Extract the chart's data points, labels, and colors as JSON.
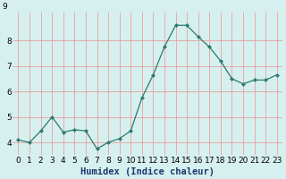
{
  "x": [
    0,
    1,
    2,
    3,
    4,
    5,
    6,
    7,
    8,
    9,
    10,
    11,
    12,
    13,
    14,
    15,
    16,
    17,
    18,
    19,
    20,
    21,
    22,
    23
  ],
  "y": [
    4.1,
    4.0,
    4.45,
    5.0,
    4.4,
    4.5,
    4.45,
    3.75,
    4.0,
    4.15,
    4.45,
    5.75,
    6.65,
    7.75,
    8.6,
    8.6,
    8.15,
    7.75,
    7.2,
    6.5,
    6.3,
    6.45,
    6.45,
    6.65
  ],
  "line_color": "#2d7a6e",
  "marker": "D",
  "marker_size": 2.0,
  "bg_color": "#d6f0ef",
  "grid_color": "#e8a0a0",
  "xlabel": "Humidex (Indice chaleur)",
  "xlim": [
    -0.5,
    23.5
  ],
  "ylim": [
    3.5,
    9.1
  ],
  "yticks": [
    4,
    5,
    6,
    7,
    8
  ],
  "y_top_label": "9",
  "xtick_labels": [
    "0",
    "1",
    "2",
    "3",
    "4",
    "5",
    "6",
    "7",
    "8",
    "9",
    "10",
    "11",
    "12",
    "13",
    "14",
    "15",
    "16",
    "17",
    "18",
    "19",
    "20",
    "21",
    "22",
    "23"
  ],
  "xlabel_fontsize": 7.5,
  "tick_fontsize": 6.5,
  "xlabel_color": "#1a3a6e",
  "xlabel_bold": true
}
